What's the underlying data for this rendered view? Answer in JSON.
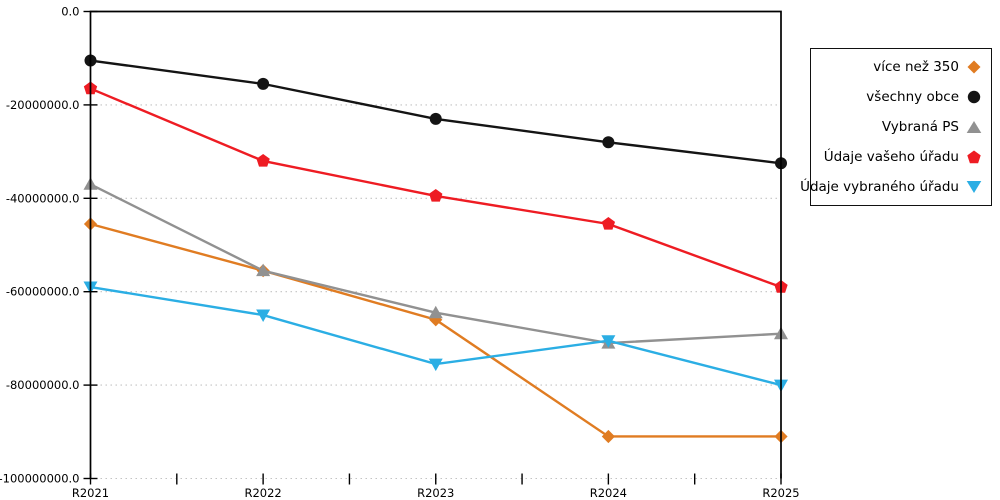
{
  "chart_data": {
    "type": "line",
    "title": "",
    "xlabel": "",
    "ylabel": "",
    "x_categories": [
      "R2021",
      "R2022",
      "R2023",
      "R2024",
      "R2025"
    ],
    "series": [
      {
        "name": "více než 350",
        "color": "#E07C22",
        "marker": "diamond",
        "values": [
          -45500000,
          -55500000,
          -66000000,
          -91000000,
          -91000000
        ]
      },
      {
        "name": "všechny obce",
        "color": "#141414",
        "marker": "circle",
        "values": [
          -10500000,
          -15500000,
          -23000000,
          -28000000,
          -32500000
        ]
      },
      {
        "name": "Vybraná PS",
        "color": "#919191",
        "marker": "triangle-up",
        "values": [
          -37000000,
          -55500000,
          -64500000,
          -71000000,
          -69000000
        ]
      },
      {
        "name": "Údaje vašeho úřadu",
        "color": "#EE1C23",
        "marker": "pentagon",
        "values": [
          -16500000,
          -32000000,
          -39500000,
          -45500000,
          -59000000
        ]
      },
      {
        "name": "Údaje vybraného úřadu",
        "color": "#2BAEE4",
        "marker": "triangle-down",
        "values": [
          -59000000,
          -65000000,
          -75500000,
          -70500000,
          -80000000
        ]
      }
    ],
    "ylim": [
      -100000000,
      0
    ],
    "ytick_step": 20000000,
    "ytick_labels": [
      "0.0",
      "-20000000.0",
      "-40000000.0",
      "-60000000.0",
      "-80000000.0",
      "-100000000.0"
    ],
    "x_minor_ticks_between_categories": true,
    "grid": "horizontal-dotted",
    "legend_position": "right-outside",
    "colors": {
      "grid": "#c3c3c3",
      "axis": "#000000",
      "background": "#ffffff"
    }
  }
}
